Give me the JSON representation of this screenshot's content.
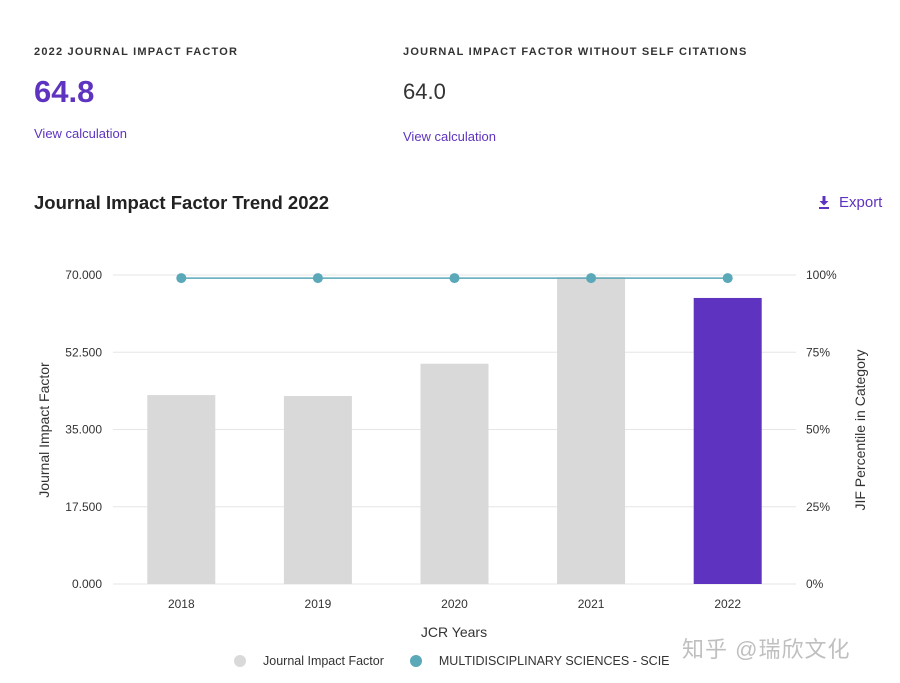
{
  "metrics": {
    "jif": {
      "label": "2022 JOURNAL IMPACT FACTOR",
      "value": "64.8",
      "link": "View calculation"
    },
    "jif_no_self": {
      "label": "JOURNAL IMPACT FACTOR WITHOUT SELF CITATIONS",
      "value": "64.0",
      "link": "View calculation"
    }
  },
  "chart_header": {
    "title": "Journal Impact Factor Trend 2022",
    "export_label": "Export",
    "export_icon": "download-icon"
  },
  "legend": {
    "jif": "Journal Impact Factor",
    "category": "MULTIDISCIPLINARY SCIENCES - SCIE"
  },
  "watermark": "知乎 @瑞欣文化",
  "colors": {
    "accent": "#5e33bf",
    "bar_default": "#d9d9d9",
    "bar_highlight": "#5e33bf",
    "percentile_line": "#5aa8b8"
  },
  "chart_data": {
    "type": "bar",
    "categories": [
      "2018",
      "2019",
      "2020",
      "2021",
      "2022"
    ],
    "series": [
      {
        "name": "Journal Impact Factor",
        "axis": "left",
        "type": "bar",
        "values": [
          42.8,
          42.6,
          49.9,
          69.5,
          64.8
        ],
        "highlight_index": 4
      },
      {
        "name": "MULTIDISCIPLINARY SCIENCES - SCIE",
        "axis": "right",
        "type": "line",
        "values": [
          99,
          99,
          99,
          99,
          99
        ]
      }
    ],
    "xlabel": "JCR Years",
    "ylabel": "Journal Impact Factor",
    "y2label": "JIF Percentile in Category",
    "ylim": [
      0,
      70
    ],
    "yticks": [
      "0.000",
      "17.500",
      "35.000",
      "52.500",
      "70.000"
    ],
    "y2lim": [
      0,
      100
    ],
    "y2ticks": [
      "0%",
      "25%",
      "50%",
      "75%",
      "100%"
    ],
    "grid": true,
    "legend_position": "bottom"
  }
}
